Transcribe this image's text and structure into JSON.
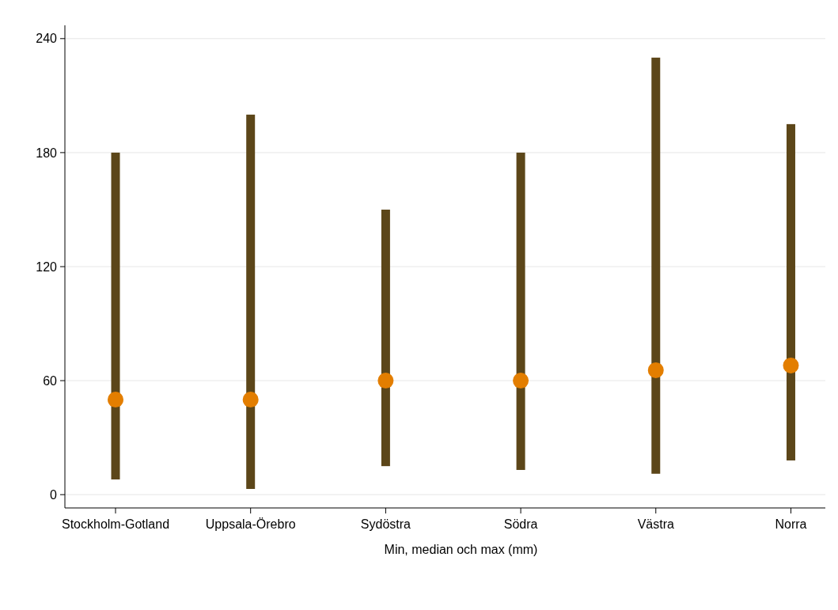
{
  "chart_data": {
    "type": "bar",
    "xlabel": "Min, median och max (mm)",
    "categories": [
      "Stockholm-Gotland",
      "Uppsala-Örebro",
      "Sydöstra",
      "Södra",
      "Västra",
      "Norra"
    ],
    "series": [
      {
        "color": "#5c4619",
        "base": [
          8,
          3,
          15,
          13,
          11,
          18
        ],
        "values": [
          172,
          197,
          135,
          167,
          219,
          177
        ]
      },
      {
        "type": "scatter",
        "color": "#e37e00",
        "marker": "circle",
        "x": [
          "Stockholm-Gotland",
          "Uppsala-Örebro",
          "Sydöstra",
          "Södra",
          "Västra",
          "Norra"
        ],
        "values": [
          50,
          50,
          60,
          60,
          65.5,
          68
        ]
      }
    ],
    "ylim": [
      -7,
      247
    ],
    "yticks": [
      0,
      60,
      120,
      180,
      240
    ],
    "grid": "y"
  }
}
